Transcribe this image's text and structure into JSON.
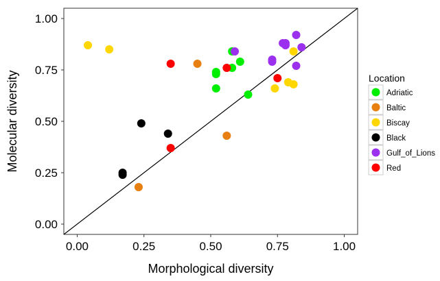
{
  "chart_data": {
    "type": "scatter",
    "title": "",
    "xlabel": "Morphological diversity",
    "ylabel": "Molecular diversity",
    "xlim": [
      -0.05,
      1.05
    ],
    "ylim": [
      -0.05,
      1.05
    ],
    "x_ticks": [
      "0.00",
      "0.25",
      "0.50",
      "0.75",
      "1.00"
    ],
    "y_ticks": [
      "0.00",
      "0.25",
      "0.50",
      "0.75",
      "1.00"
    ],
    "x_tick_values": [
      0,
      0.25,
      0.5,
      0.75,
      1.0
    ],
    "y_tick_values": [
      0,
      0.25,
      0.5,
      0.75,
      1.0
    ],
    "grid": false,
    "reference_line": "y = x",
    "legend": {
      "title": "Location",
      "position": "right"
    },
    "series": [
      {
        "name": "Adriatic",
        "color": "#00ee00",
        "points": [
          [
            0.52,
            0.73
          ],
          [
            0.52,
            0.74
          ],
          [
            0.52,
            0.66
          ],
          [
            0.58,
            0.76
          ],
          [
            0.58,
            0.84
          ],
          [
            0.61,
            0.79
          ],
          [
            0.64,
            0.63
          ]
        ]
      },
      {
        "name": "Baltic",
        "color": "#e87f11",
        "points": [
          [
            0.23,
            0.18
          ],
          [
            0.45,
            0.78
          ],
          [
            0.56,
            0.43
          ]
        ]
      },
      {
        "name": "Biscay",
        "color": "#ffd700",
        "points": [
          [
            0.04,
            0.87
          ],
          [
            0.12,
            0.85
          ],
          [
            0.74,
            0.66
          ],
          [
            0.79,
            0.69
          ],
          [
            0.81,
            0.84
          ],
          [
            0.81,
            0.68
          ]
        ]
      },
      {
        "name": "Black",
        "color": "#000000",
        "points": [
          [
            0.17,
            0.25
          ],
          [
            0.17,
            0.24
          ],
          [
            0.24,
            0.49
          ],
          [
            0.34,
            0.44
          ]
        ]
      },
      {
        "name": "Gulf_of_Lions",
        "color": "#9b30ef",
        "points": [
          [
            0.59,
            0.84
          ],
          [
            0.73,
            0.8
          ],
          [
            0.73,
            0.79
          ],
          [
            0.77,
            0.88
          ],
          [
            0.78,
            0.87
          ],
          [
            0.78,
            0.88
          ],
          [
            0.82,
            0.92
          ],
          [
            0.82,
            0.77
          ],
          [
            0.84,
            0.86
          ]
        ]
      },
      {
        "name": "Red",
        "color": "#ff0000",
        "points": [
          [
            0.35,
            0.78
          ],
          [
            0.35,
            0.37
          ],
          [
            0.56,
            0.76
          ],
          [
            0.75,
            0.71
          ]
        ]
      }
    ]
  }
}
